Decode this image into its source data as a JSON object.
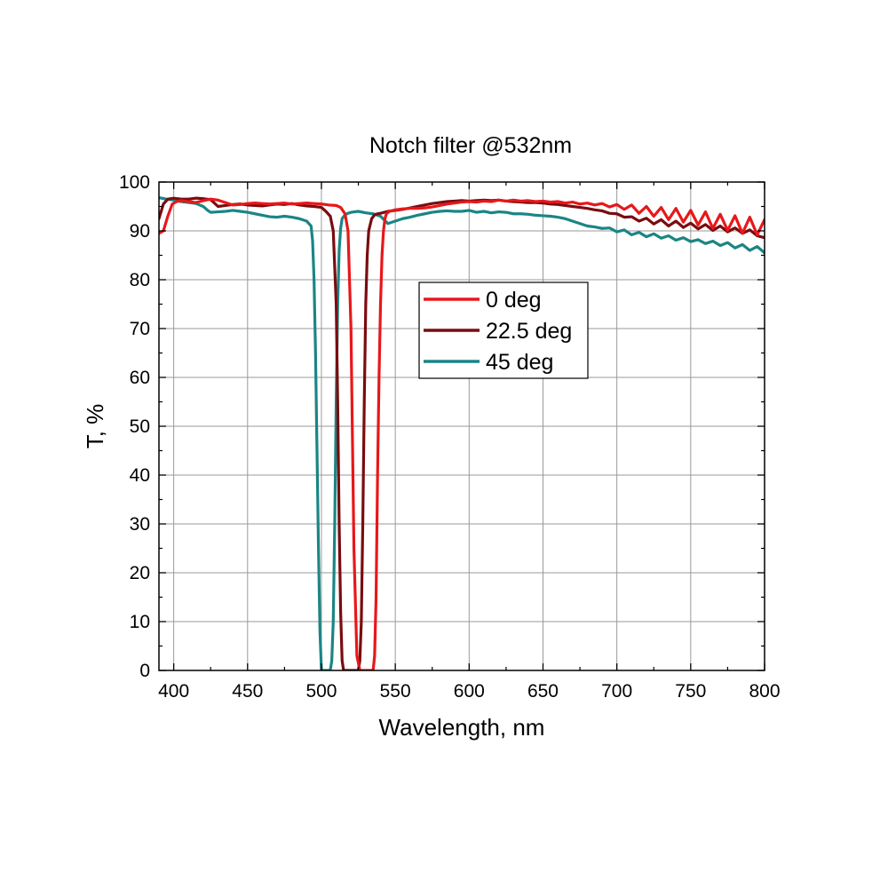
{
  "chart_data": {
    "type": "line",
    "title": "Notch filter @532nm",
    "xlabel": "Wavelength, nm",
    "ylabel": "T, %",
    "xlim": [
      390,
      800
    ],
    "ylim": [
      0,
      100
    ],
    "xticks": [
      400,
      450,
      500,
      550,
      600,
      650,
      700,
      750,
      800
    ],
    "yticks": [
      0,
      10,
      20,
      30,
      40,
      50,
      60,
      70,
      80,
      90,
      100
    ],
    "grid": true,
    "legend_position": "center",
    "series": [
      {
        "name": "0 deg",
        "color": "#e8171a",
        "x": [
          390,
          393,
          396,
          399,
          402,
          405,
          410,
          415,
          420,
          425,
          430,
          435,
          440,
          445,
          450,
          455,
          460,
          465,
          470,
          475,
          480,
          485,
          490,
          495,
          500,
          505,
          510,
          513,
          516,
          518,
          520,
          522,
          524,
          526,
          528,
          530,
          532,
          534,
          535,
          536,
          537,
          538,
          539,
          540,
          541,
          542,
          543,
          544,
          546,
          550,
          555,
          560,
          565,
          570,
          575,
          580,
          585,
          590,
          595,
          600,
          605,
          610,
          615,
          620,
          625,
          630,
          635,
          640,
          645,
          650,
          655,
          660,
          665,
          670,
          675,
          680,
          685,
          690,
          695,
          700,
          705,
          710,
          715,
          720,
          725,
          730,
          735,
          740,
          745,
          750,
          755,
          760,
          765,
          770,
          775,
          780,
          785,
          790,
          795,
          800
        ],
        "y": [
          89.5,
          90,
          93,
          95.5,
          96,
          96.2,
          96,
          95.8,
          96.2,
          96.5,
          96.3,
          95.8,
          95.3,
          95.4,
          95.6,
          95.7,
          95.6,
          95.5,
          95.6,
          95.7,
          95.5,
          95.6,
          95.7,
          95.6,
          95.5,
          95.3,
          95.2,
          94.8,
          93.5,
          90,
          70,
          25,
          3,
          0,
          0,
          0,
          0,
          0,
          0,
          3,
          15,
          40,
          60,
          75,
          85,
          90,
          92.5,
          93.5,
          94,
          94.3,
          94.5,
          94.6,
          94.6,
          94.7,
          94.9,
          95.2,
          95.5,
          95.7,
          95.9,
          96,
          95.9,
          96.1,
          96,
          96.3,
          96.1,
          96.3,
          96.1,
          96.2,
          96,
          96.1,
          95.9,
          96,
          95.7,
          95.9,
          95.5,
          95.7,
          95.3,
          95.6,
          94.9,
          95.4,
          94.4,
          95.3,
          93.6,
          95,
          93,
          94.8,
          92.3,
          94.6,
          91.8,
          94.2,
          91.2,
          93.9,
          90.5,
          93.4,
          90.1,
          93.1,
          89.5,
          92.8,
          89.2,
          92.3
        ]
      },
      {
        "name": "22.5 deg",
        "color": "#7a0c0f",
        "x": [
          390,
          393,
          396,
          400,
          405,
          410,
          415,
          420,
          425,
          430,
          435,
          440,
          445,
          450,
          455,
          460,
          465,
          470,
          475,
          480,
          485,
          490,
          495,
          500,
          503,
          506,
          508,
          510,
          511,
          512,
          513,
          514,
          515,
          517,
          519,
          521,
          523,
          525,
          526,
          527,
          528,
          529,
          530,
          531,
          532,
          534,
          536,
          538,
          540,
          545,
          550,
          555,
          560,
          565,
          570,
          575,
          580,
          585,
          590,
          595,
          600,
          605,
          610,
          615,
          620,
          625,
          630,
          635,
          640,
          645,
          650,
          655,
          660,
          665,
          670,
          675,
          680,
          685,
          690,
          695,
          700,
          705,
          710,
          715,
          720,
          725,
          730,
          735,
          740,
          745,
          750,
          755,
          760,
          765,
          770,
          775,
          780,
          785,
          790,
          795,
          800
        ],
        "y": [
          92.5,
          95.5,
          96.5,
          96.7,
          96.5,
          96.5,
          96.7,
          96.6,
          96.4,
          95,
          95.2,
          95.4,
          95.5,
          95.3,
          95.2,
          95.1,
          95.3,
          95.5,
          95.4,
          95.6,
          95.3,
          95.1,
          95,
          94.8,
          94,
          93,
          90,
          75,
          55,
          30,
          12,
          2,
          0,
          0,
          0,
          0,
          0,
          0,
          2,
          10,
          30,
          55,
          75,
          85,
          90,
          92.5,
          93.3,
          93.5,
          93.6,
          94,
          94.2,
          94.4,
          94.7,
          95,
          95.3,
          95.6,
          95.8,
          96,
          96.1,
          96.2,
          96.1,
          96.2,
          96.3,
          96.2,
          96.3,
          96.1,
          96,
          95.9,
          95.8,
          95.8,
          95.7,
          95.5,
          95.4,
          95.2,
          95,
          94.8,
          94.6,
          94.3,
          94.1,
          93.6,
          93.5,
          92.8,
          92.9,
          92,
          92.6,
          91.4,
          92.3,
          91,
          92,
          90.7,
          91.6,
          90.4,
          91.3,
          90.1,
          91,
          89.8,
          90.6,
          89.5,
          90.2,
          89,
          88.6
        ]
      },
      {
        "name": "45 deg",
        "color": "#1b8585",
        "x": [
          390,
          395,
          400,
          405,
          410,
          415,
          420,
          423,
          425,
          430,
          435,
          440,
          445,
          450,
          455,
          460,
          465,
          470,
          475,
          480,
          485,
          490,
          493,
          494,
          495,
          496,
          497,
          498,
          499,
          500,
          501,
          502,
          504,
          506,
          507,
          508,
          509,
          510,
          511,
          512,
          513,
          514,
          516,
          518,
          520,
          525,
          530,
          535,
          540,
          545,
          550,
          555,
          560,
          565,
          570,
          575,
          580,
          585,
          590,
          595,
          600,
          605,
          610,
          615,
          620,
          625,
          630,
          635,
          640,
          645,
          650,
          655,
          660,
          665,
          670,
          675,
          680,
          685,
          690,
          695,
          700,
          705,
          710,
          715,
          720,
          725,
          730,
          735,
          740,
          745,
          750,
          755,
          760,
          765,
          770,
          775,
          780,
          785,
          790,
          795,
          800
        ],
        "y": [
          96.8,
          96.5,
          96.3,
          96,
          95.8,
          95.6,
          95,
          94.2,
          93.8,
          93.9,
          94,
          94.2,
          94,
          93.8,
          93.5,
          93.2,
          92.9,
          92.8,
          93,
          92.8,
          92.5,
          92,
          91,
          88,
          80,
          65,
          45,
          25,
          8,
          0,
          0,
          0,
          0,
          0,
          2,
          10,
          30,
          55,
          75,
          86,
          90.5,
          92.5,
          93.3,
          93.6,
          93.8,
          94,
          93.7,
          93.5,
          93,
          91.5,
          92,
          92.5,
          92.8,
          93.2,
          93.5,
          93.8,
          94,
          94.1,
          94,
          94,
          94.2,
          93.8,
          94,
          93.7,
          93.9,
          93.8,
          93.5,
          93.5,
          93.4,
          93.2,
          93.1,
          93,
          92.8,
          92.5,
          92,
          91.5,
          91,
          90.8,
          90.5,
          90.6,
          89.8,
          90.2,
          89.2,
          89.7,
          88.8,
          89.4,
          88.5,
          89,
          88.1,
          88.6,
          87.8,
          88.2,
          87.4,
          87.9,
          87,
          87.6,
          86.5,
          87.2,
          86,
          86.8,
          85.5
        ]
      }
    ]
  }
}
